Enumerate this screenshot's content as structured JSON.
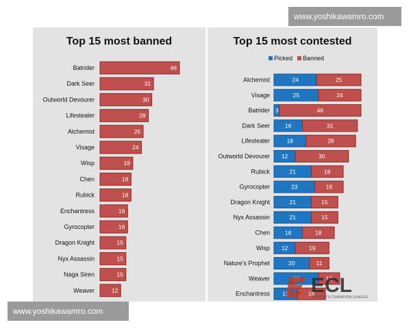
{
  "watermarks": {
    "top": "www.yoshikawamro.com",
    "bottom": "www.yoshikawamro.com"
  },
  "logo": {
    "text": "ECL",
    "subtitle": "ESPORTS CHAMPION LEAGUE"
  },
  "colors": {
    "banned": "#c0504d",
    "banned_stroke": "#8c2c2a",
    "picked": "#1f77c4",
    "picked_stroke": "#14548e",
    "panel": "#e3e3e3"
  },
  "chart_data": [
    {
      "type": "bar",
      "orientation": "horizontal",
      "title": "Top 15 most banned",
      "categories": [
        "Batrider",
        "Dark Seer",
        "Outworld Devourer",
        "Lifestealer",
        "Alchemist",
        "Visage",
        "Wisp",
        "Chen",
        "Rubick",
        "Enchantress",
        "Gyrocopter",
        "Dragon Knight",
        "Nyx Assassin",
        "Naga Siren",
        "Weaver"
      ],
      "series": [
        {
          "name": "Banned",
          "values": [
            46,
            31,
            30,
            28,
            25,
            24,
            19,
            18,
            18,
            16,
            16,
            15,
            15,
            15,
            12
          ]
        }
      ],
      "xlim": [
        0,
        46
      ],
      "grid": false,
      "legend": "none"
    },
    {
      "type": "bar",
      "orientation": "horizontal",
      "stacked": true,
      "title": "Top 15 most contested",
      "categories": [
        "Alchemist",
        "Visage",
        "Batrider",
        "Dark Seer",
        "Lifestealer",
        "Outworld Devourer",
        "Rubick",
        "Gyrocopter",
        "Dragon Knight",
        "Nyx Assassin",
        "Chen",
        "Wisp",
        "Nature's Prophet",
        "Weaver",
        "Enchantress"
      ],
      "series": [
        {
          "name": "Picked",
          "values": [
            24,
            25,
            3,
            16,
            18,
            12,
            21,
            23,
            21,
            21,
            16,
            12,
            20,
            25,
            13
          ]
        },
        {
          "name": "Banned",
          "values": [
            25,
            24,
            46,
            31,
            28,
            30,
            18,
            16,
            15,
            15,
            18,
            19,
            11,
            12,
            16
          ]
        }
      ],
      "xlim": [
        0,
        49
      ],
      "grid": false,
      "legend": "top"
    }
  ]
}
